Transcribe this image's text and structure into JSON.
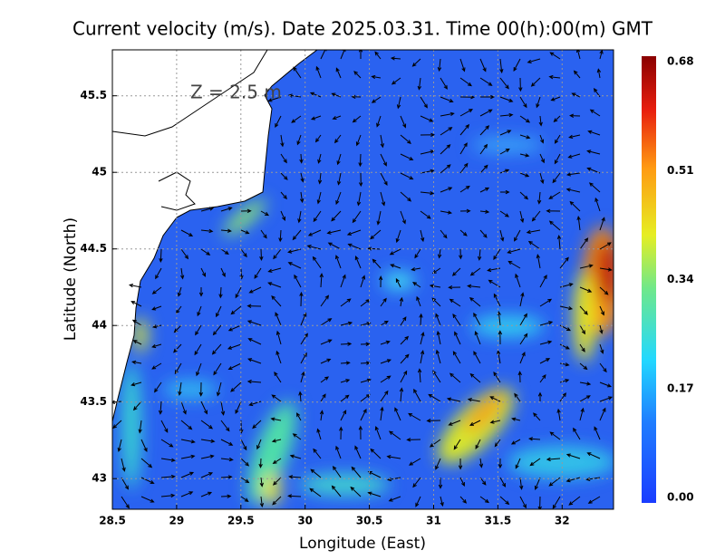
{
  "title": "Current velocity (m/s). Date 2025.03.31. Time 00(h):00(m) GMT",
  "annotation": "Z = 2.5 m",
  "x_axis": {
    "label": "Longitude (East)",
    "lim": [
      28.5,
      32.4
    ],
    "ticks": [
      28.5,
      29,
      29.5,
      30,
      30.5,
      31,
      31.5,
      32
    ]
  },
  "y_axis": {
    "label": "Latitude (North)",
    "lim": [
      42.8,
      45.8
    ],
    "ticks": [
      43,
      43.5,
      44,
      44.5,
      45,
      45.5
    ]
  },
  "colorbar": {
    "lim": [
      0,
      0.68
    ],
    "ticks": [
      {
        "value": 0,
        "label": "0.00"
      },
      0.17,
      0.34,
      0.51,
      0.68
    ]
  }
}
